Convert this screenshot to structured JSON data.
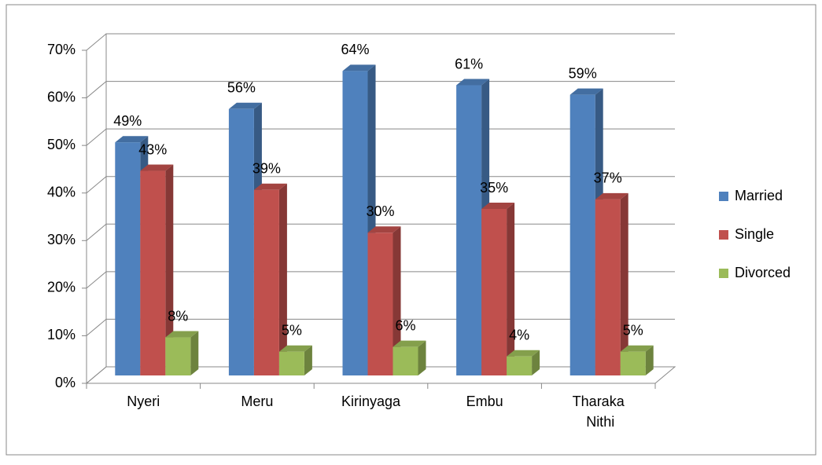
{
  "chart_data": {
    "type": "bar3d",
    "categories": [
      "Nyeri",
      "Meru",
      "Kirinyaga",
      "Embu",
      "Tharaka Nithi"
    ],
    "series": [
      {
        "name": "Married",
        "color": "#4f81bd",
        "values": [
          49,
          56,
          64,
          61,
          59
        ],
        "value_labels": [
          "49%",
          "56%",
          "64%",
          "61%",
          "59%"
        ]
      },
      {
        "name": "Single",
        "color": "#c0504d",
        "values": [
          43,
          39,
          30,
          35,
          37
        ],
        "value_labels": [
          "43%",
          "39%",
          "30%",
          "35%",
          "37%"
        ]
      },
      {
        "name": "Divorced",
        "color": "#9bbb59",
        "values": [
          8,
          5,
          6,
          4,
          5
        ],
        "value_labels": [
          "8%",
          "5%",
          "6%",
          "4%",
          "5%"
        ]
      }
    ],
    "ylim": [
      0,
      70
    ],
    "yticks": [
      {
        "value": 0,
        "label": "0%"
      },
      {
        "value": 10,
        "label": "10%"
      },
      {
        "value": 20,
        "label": "20%"
      },
      {
        "value": 30,
        "label": "30%"
      },
      {
        "value": 40,
        "label": "40%"
      },
      {
        "value": 50,
        "label": "50%"
      },
      {
        "value": 60,
        "label": "60%"
      },
      {
        "value": 70,
        "label": "70%"
      }
    ],
    "grid": true,
    "legend": "right"
  }
}
